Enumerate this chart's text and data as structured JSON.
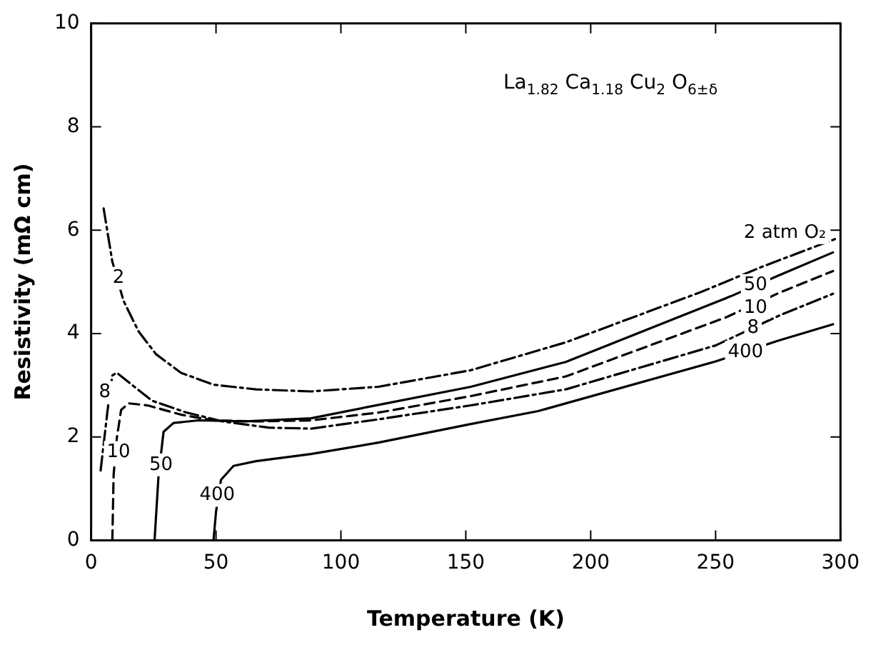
{
  "chart_data": {
    "type": "line",
    "xlabel": "Temperature (K)",
    "ylabel": "Resistivity (mΩ cm)",
    "xlim": [
      0,
      300
    ],
    "xticks": [
      0,
      50,
      100,
      150,
      200,
      250,
      300
    ],
    "ylim": [
      0,
      10
    ],
    "yticks": [
      0,
      2,
      4,
      6,
      8,
      10
    ],
    "grid": false,
    "legend": false,
    "marker": "none",
    "series": [
      {
        "color": "#000000",
        "line_style": "dashdot",
        "x": [
          5,
          8.5,
          13,
          19,
          26,
          36,
          49,
          66,
          88,
          115,
          152,
          190,
          244,
          269,
          299
        ],
        "values": [
          6.42,
          5.39,
          4.63,
          4.04,
          3.6,
          3.24,
          3.01,
          2.92,
          2.88,
          2.97,
          3.29,
          3.83,
          4.8,
          5.3,
          5.85
        ]
      },
      {
        "color": "#000000",
        "line_style": "solid",
        "x": [
          25.4,
          27,
          29,
          33,
          43,
          62,
          88,
          115,
          152,
          190,
          256,
          275,
          297
        ],
        "values": [
          0,
          1.26,
          2.1,
          2.27,
          2.32,
          2.3,
          2.36,
          2.62,
          2.97,
          3.45,
          4.72,
          5.12,
          5.57
        ]
      },
      {
        "color": "#000000",
        "line_style": "dashed",
        "x": [
          8.5,
          9,
          10.3,
          12,
          15,
          22.6,
          36,
          49,
          66,
          88,
          115,
          152,
          190,
          254,
          276,
          297
        ],
        "values": [
          0,
          1.26,
          1.98,
          2.52,
          2.65,
          2.61,
          2.43,
          2.32,
          2.3,
          2.32,
          2.47,
          2.79,
          3.17,
          4.31,
          4.8,
          5.21
        ]
      },
      {
        "color": "#000000",
        "line_style": "dashdot",
        "x": [
          3.8,
          6.6,
          8.5,
          10.3,
          15,
          24.4,
          37.6,
          52.6,
          71,
          88,
          115,
          152,
          190,
          250,
          276,
          297
        ],
        "values": [
          1.35,
          2.52,
          3.19,
          3.24,
          3.06,
          2.7,
          2.48,
          2.3,
          2.18,
          2.16,
          2.34,
          2.61,
          2.92,
          3.77,
          4.36,
          4.77
        ]
      },
      {
        "color": "#000000",
        "line_style": "solid",
        "x": [
          49,
          50,
          52,
          57,
          66,
          88,
          115,
          152,
          179,
          250,
          275,
          297
        ],
        "values": [
          0,
          0.55,
          1.17,
          1.44,
          1.53,
          1.67,
          1.89,
          2.25,
          2.5,
          3.46,
          3.86,
          4.18
        ]
      }
    ],
    "annotations": [
      "La$_{1.82}$ Ca$_{1.18}$ Cu$_{2}$ O$_{6±δ}$",
      "2 atm O₂",
      {
        "text": "50",
        "x": 266,
        "y": 4.93
      },
      {
        "text": "10",
        "x": 266,
        "y": 4.5
      },
      {
        "text": "8",
        "x": 265,
        "y": 4.1
      },
      {
        "text": "400",
        "x": 262,
        "y": 3.64
      },
      {
        "text": "2",
        "x": 11,
        "y": 5.07
      },
      {
        "text": "8",
        "x": 5.5,
        "y": 2.86
      },
      {
        "text": "10",
        "x": 11,
        "y": 1.7
      },
      {
        "text": "50",
        "x": 28,
        "y": 1.46
      },
      {
        "text": "400",
        "x": 50.5,
        "y": 0.87
      }
    ]
  }
}
